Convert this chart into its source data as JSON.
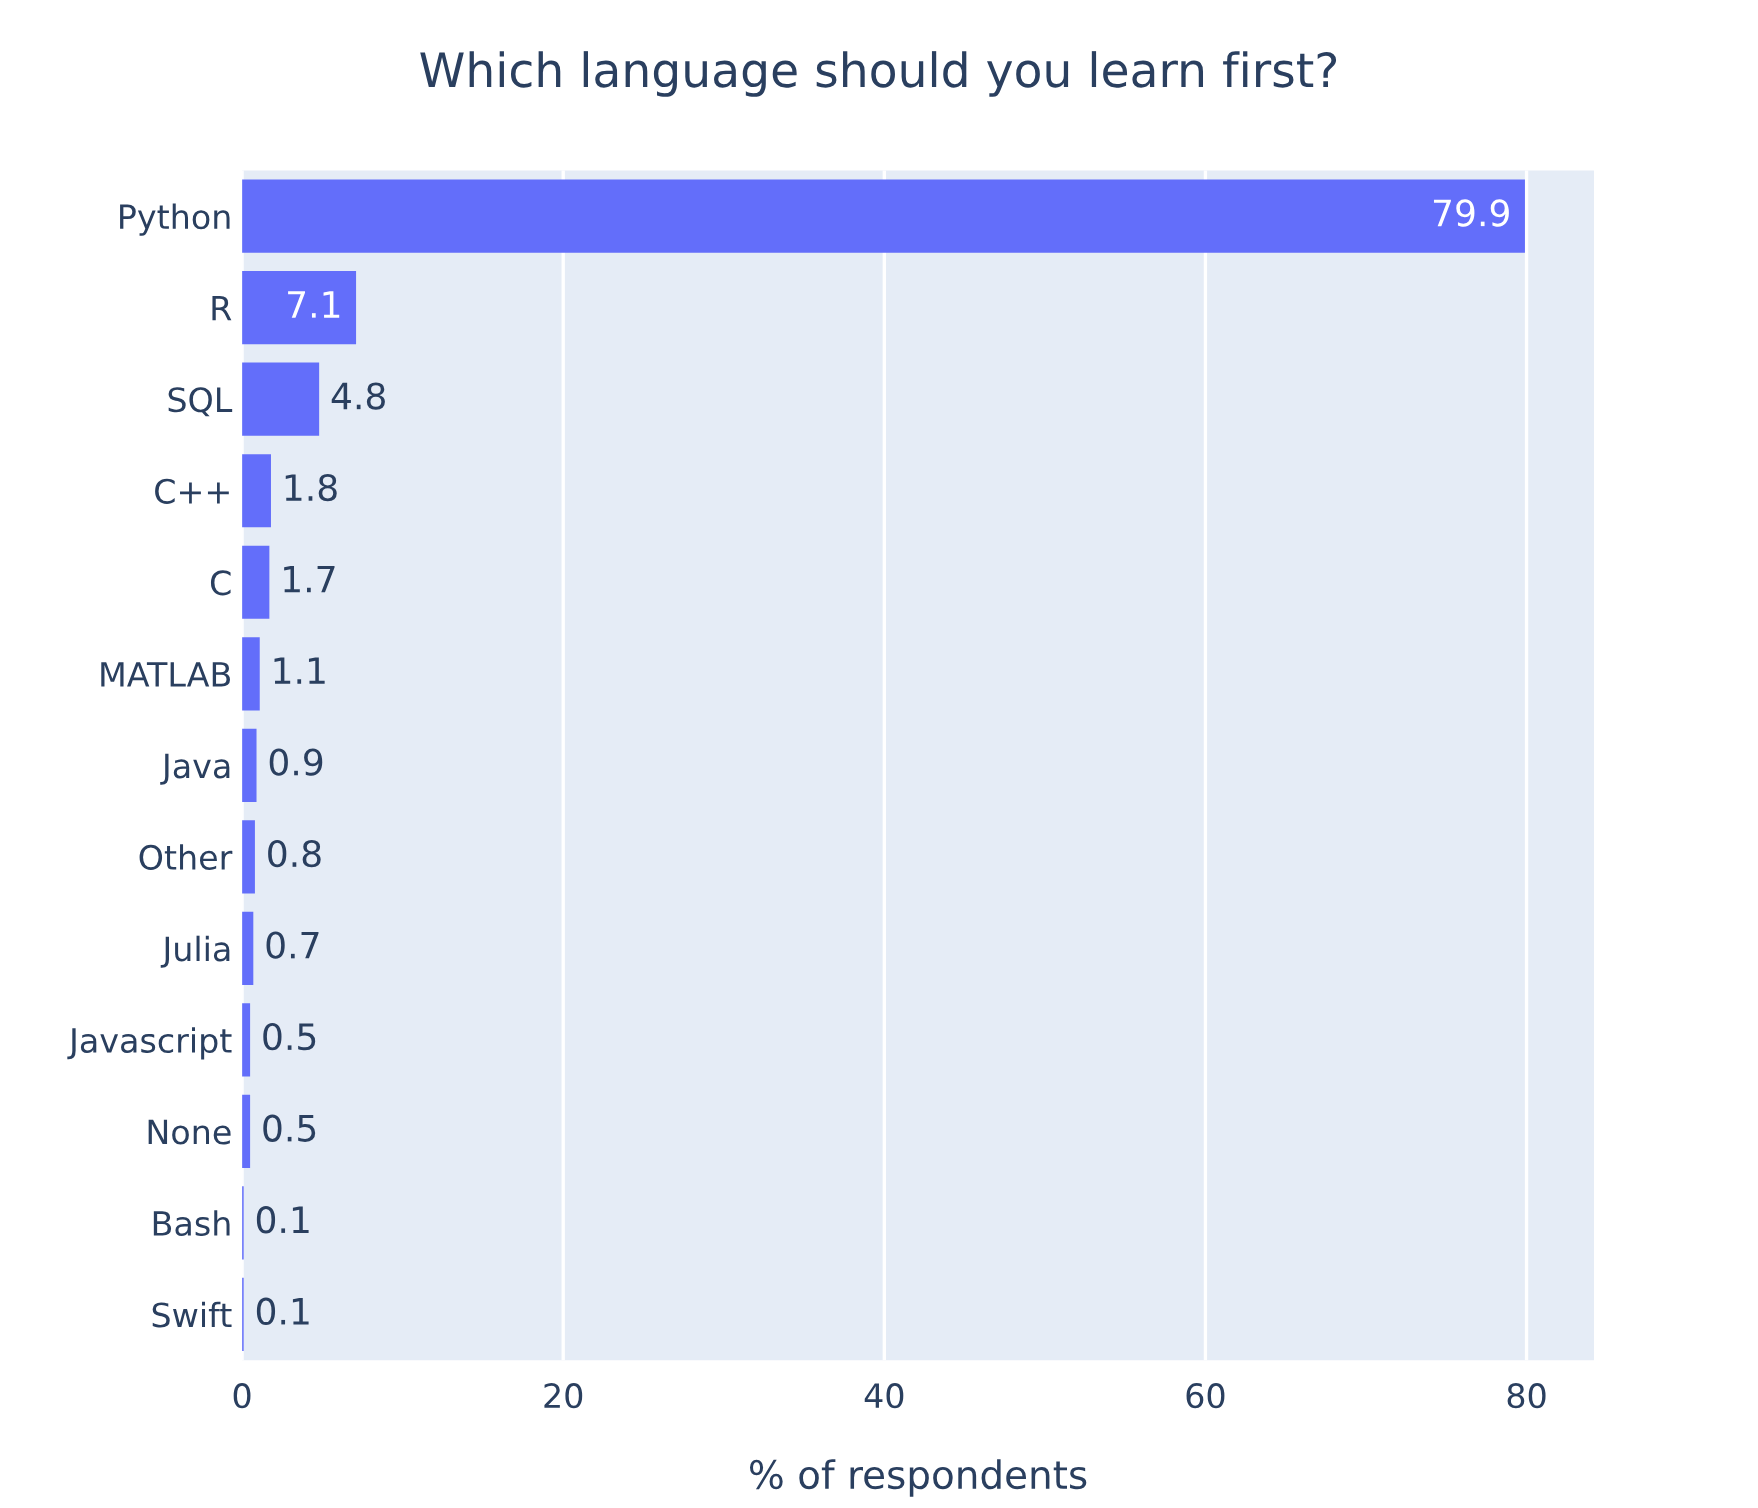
{
  "chart_data": {
    "type": "bar",
    "orientation": "horizontal",
    "title": "Which language should you learn first?",
    "xlabel": "% of respondents",
    "categories": [
      "Python",
      "R",
      "SQL",
      "C++",
      "C",
      "MATLAB",
      "Java",
      "Other",
      "Julia",
      "Javascript",
      "None",
      "Bash",
      "Swift"
    ],
    "values": [
      79.9,
      7.1,
      4.8,
      1.8,
      1.7,
      1.1,
      0.9,
      0.8,
      0.7,
      0.5,
      0.5,
      0.1,
      0.1
    ],
    "color": "#636efa",
    "xlim": [
      0,
      84.2
    ],
    "xticks": [
      0,
      20,
      40,
      60,
      80
    ],
    "grid": "x",
    "data_labels": true,
    "legend": false
  }
}
